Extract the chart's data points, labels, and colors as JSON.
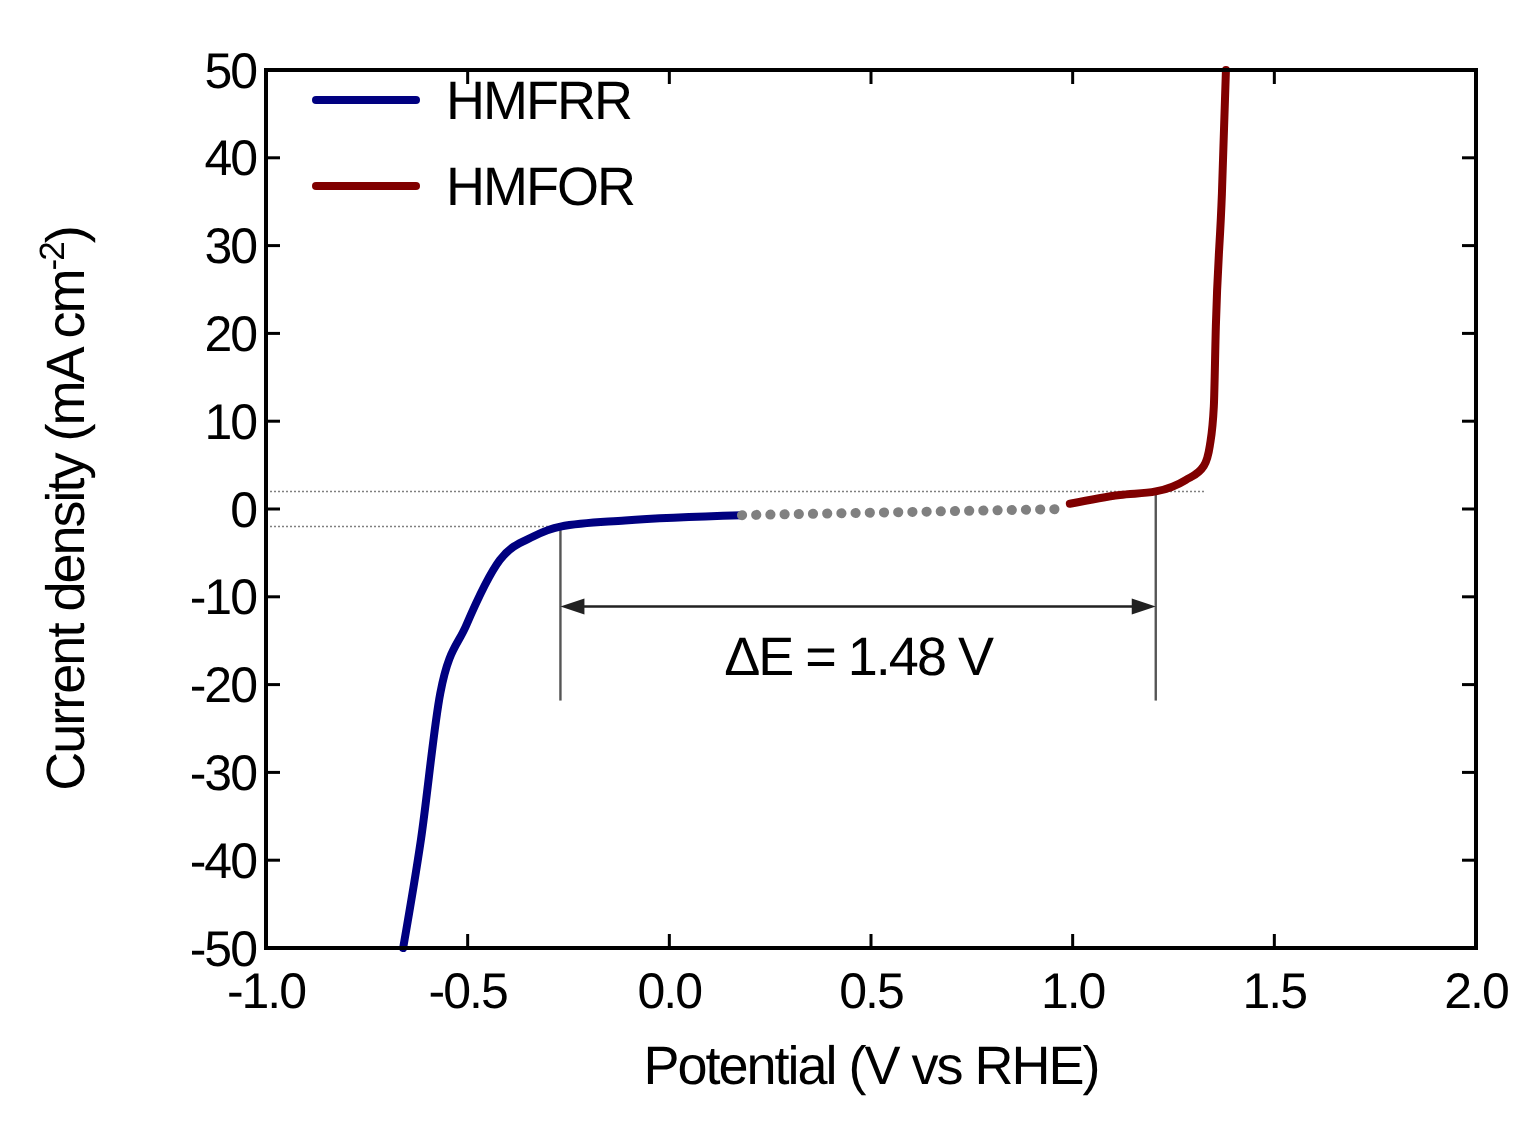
{
  "chart_data": {
    "type": "line",
    "xlabel": "Potential (V vs RHE)",
    "ylabel": "Current density (mA cm$^{-2}$)",
    "xlim": [
      -1,
      2
    ],
    "ylim": [
      -50,
      50
    ],
    "xticks": [
      {
        "value": -1,
        "label": "-1.0"
      },
      {
        "value": -0.5,
        "label": "-0.5"
      },
      {
        "value": 0,
        "label": "0.0"
      },
      {
        "value": 0.5,
        "label": "0.5"
      },
      {
        "value": 1,
        "label": "1.0"
      },
      {
        "value": 1.5,
        "label": "1.5"
      },
      {
        "value": 2,
        "label": "2.0"
      }
    ],
    "yticks": [
      -50,
      -40,
      -30,
      -20,
      -10,
      0,
      10,
      20,
      30,
      40,
      50
    ],
    "legend": "top left",
    "grid": false,
    "series": [
      {
        "name": "HMFRR",
        "color": "#000080",
        "x": [
          -0.66,
          -0.616,
          -0.568,
          -0.504,
          -0.42,
          -0.336,
          -0.27,
          -0.11,
          0.18
        ],
        "values": [
          -50,
          -37.7,
          -21,
          -13.3,
          -5.8,
          -3.1,
          -2,
          -1.3,
          -0.7
        ]
      },
      {
        "color": "#808080",
        "line_style": "dotted",
        "x": [
          0.18,
          0.98
        ],
        "values": [
          -0.7,
          0
        ]
      },
      {
        "name": "HMFOR",
        "color": "#800000",
        "x": [
          0.993,
          1.117,
          1.206,
          1.28,
          1.325,
          1.34,
          1.35,
          1.355,
          1.37,
          1.38
        ],
        "values": [
          0.6,
          1.6,
          2,
          3.3,
          4.9,
          7.2,
          11.7,
          20.8,
          35.9,
          50
        ]
      }
    ],
    "ref_lines": [
      {
        "axis": "y",
        "value": -2,
        "color": "#808080",
        "line_style": "dotted"
      },
      {
        "axis": "y",
        "value": 2,
        "color": "#808080",
        "line_style": "dotted"
      }
    ],
    "annotations": [
      "ΔE = 1.48 V"
    ]
  }
}
